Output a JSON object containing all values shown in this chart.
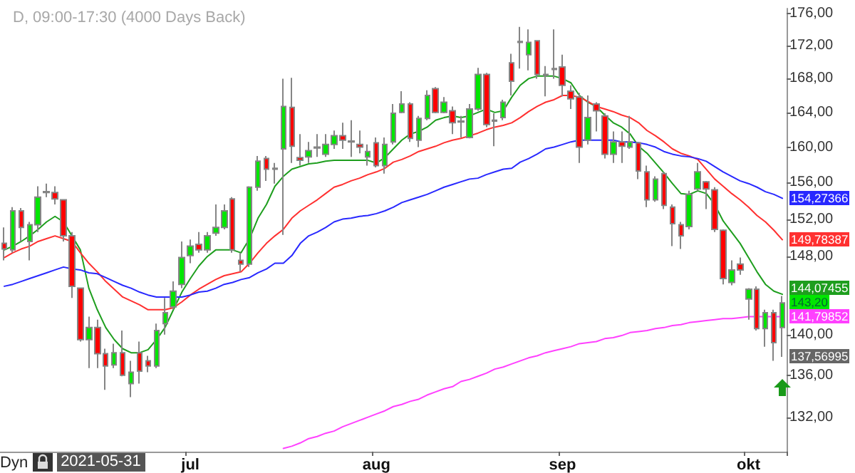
{
  "chart_data": {
    "type": "candlestick",
    "title": "D, 09:00-17:30 (4000 Days Back)",
    "categories": [
      null,
      null,
      null,
      null,
      null,
      null,
      null,
      null,
      null,
      null,
      null,
      null,
      null,
      null,
      null,
      null,
      null,
      null,
      null,
      null,
      null,
      null,
      "jul",
      null,
      null,
      null,
      null,
      null,
      null,
      null,
      null,
      null,
      null,
      null,
      null,
      null,
      null,
      null,
      null,
      null,
      null,
      null,
      null,
      null,
      "aug",
      null,
      null,
      null,
      null,
      null,
      null,
      null,
      null,
      null,
      null,
      null,
      null,
      null,
      null,
      null,
      null,
      null,
      null,
      null,
      null,
      null,
      "sep",
      null,
      null,
      null,
      null,
      null,
      null,
      null,
      null,
      null,
      null,
      null,
      null,
      null,
      null,
      null,
      null,
      null,
      null,
      null,
      null,
      null,
      "okt",
      null,
      null,
      null,
      null
    ],
    "ohlc": [
      [
        149.4,
        151.1,
        147.6,
        148.8
      ],
      [
        148.7,
        153.3,
        148.4,
        152.9
      ],
      [
        152.9,
        153.2,
        149.6,
        151.1
      ],
      [
        149.6,
        151.7,
        147.6,
        151.4
      ],
      [
        151.4,
        155.6,
        150.6,
        154.4
      ],
      [
        155.0,
        155.9,
        154.4,
        154.9
      ],
      [
        154.9,
        155.6,
        153.6,
        154.2
      ],
      [
        154.1,
        154.1,
        149.6,
        150.2
      ],
      [
        150.2,
        150.6,
        143.7,
        144.9
      ],
      [
        144.7,
        144.7,
        139.3,
        139.5
      ],
      [
        139.5,
        141.8,
        136.7,
        140.7
      ],
      [
        140.7,
        141.5,
        136.7,
        138.1
      ],
      [
        138.1,
        138.6,
        134.6,
        136.9
      ],
      [
        137.0,
        139.1,
        136.7,
        138.2
      ],
      [
        138.2,
        140.4,
        135.9,
        136.0
      ],
      [
        135.2,
        137.4,
        133.9,
        136.3
      ],
      [
        138.2,
        139.3,
        135.2,
        136.4
      ],
      [
        137.4,
        137.9,
        136.3,
        136.9
      ],
      [
        136.9,
        141.1,
        136.7,
        140.4
      ],
      [
        141.1,
        143.7,
        140.0,
        142.2
      ],
      [
        142.8,
        145.4,
        142.5,
        144.4
      ],
      [
        145.1,
        149.6,
        144.7,
        147.9
      ],
      [
        148.1,
        149.8,
        147.3,
        149.1
      ],
      [
        149.3,
        150.6,
        148.4,
        148.7
      ],
      [
        148.7,
        150.6,
        148.4,
        150.2
      ],
      [
        150.5,
        153.6,
        150.2,
        151.1
      ],
      [
        151.1,
        153.6,
        150.9,
        152.9
      ],
      [
        154.2,
        154.4,
        148.4,
        148.7
      ],
      [
        147.6,
        148.4,
        146.4,
        147.2
      ],
      [
        147.2,
        155.6,
        146.9,
        155.5
      ],
      [
        155.5,
        159.0,
        155.1,
        158.4
      ],
      [
        158.7,
        159.0,
        156.2,
        157.5
      ],
      [
        157.6,
        158.2,
        155.9,
        157.5
      ],
      [
        159.8,
        168.0,
        150.3,
        164.7
      ],
      [
        164.6,
        168.1,
        158.2,
        160.1
      ],
      [
        158.8,
        161.5,
        157.9,
        158.5
      ],
      [
        158.9,
        160.6,
        158.2,
        159.6
      ],
      [
        159.9,
        161.5,
        158.9,
        160.0
      ],
      [
        159.2,
        161.5,
        158.9,
        160.3
      ],
      [
        160.3,
        161.9,
        159.8,
        161.3
      ],
      [
        161.3,
        162.8,
        159.8,
        160.8
      ],
      [
        160.7,
        163.1,
        158.9,
        160.6
      ],
      [
        160.3,
        161.9,
        159.3,
        160.0
      ],
      [
        158.9,
        160.3,
        157.9,
        159.5
      ],
      [
        160.5,
        161.1,
        157.7,
        157.9
      ],
      [
        157.9,
        161.1,
        157.0,
        160.3
      ],
      [
        160.6,
        165.0,
        160.3,
        163.9
      ],
      [
        164.0,
        166.5,
        163.9,
        165.0
      ],
      [
        165.0,
        165.2,
        160.6,
        161.0
      ],
      [
        160.8,
        163.6,
        160.0,
        163.3
      ],
      [
        163.3,
        166.6,
        163.1,
        166.0
      ],
      [
        166.8,
        167.0,
        163.9,
        164.0
      ],
      [
        164.0,
        165.8,
        163.9,
        165.2
      ],
      [
        164.2,
        164.7,
        161.5,
        162.8
      ],
      [
        163.0,
        163.6,
        161.1,
        162.9
      ],
      [
        161.1,
        165.0,
        161.0,
        164.4
      ],
      [
        164.4,
        169.3,
        164.2,
        168.5
      ],
      [
        168.5,
        168.7,
        162.3,
        162.6
      ],
      [
        163.1,
        163.9,
        160.1,
        163.0
      ],
      [
        163.4,
        165.5,
        163.1,
        165.2
      ],
      [
        169.9,
        171.0,
        166.0,
        167.7
      ],
      [
        172.5,
        174.3,
        169.2,
        172.4
      ],
      [
        170.9,
        174.0,
        169.0,
        172.4
      ],
      [
        172.6,
        172.6,
        168.0,
        168.5
      ],
      [
        168.5,
        169.5,
        165.9,
        168.4
      ],
      [
        169.2,
        174.0,
        168.0,
        169.1
      ],
      [
        169.4,
        170.9,
        165.9,
        167.2
      ],
      [
        166.5,
        167.2,
        164.4,
        165.6
      ],
      [
        165.8,
        166.3,
        158.2,
        160.0
      ],
      [
        160.8,
        166.0,
        160.3,
        163.4
      ],
      [
        165.0,
        165.2,
        161.8,
        164.2
      ],
      [
        163.6,
        163.9,
        158.7,
        159.2
      ],
      [
        159.2,
        161.8,
        158.2,
        160.6
      ],
      [
        160.6,
        161.8,
        158.2,
        160.1
      ],
      [
        160.0,
        163.6,
        159.8,
        160.6
      ],
      [
        160.5,
        160.6,
        156.4,
        157.3
      ],
      [
        157.2,
        157.9,
        153.3,
        154.1
      ],
      [
        154.1,
        156.7,
        153.9,
        156.4
      ],
      [
        157.0,
        157.2,
        153.1,
        153.5
      ],
      [
        153.3,
        153.6,
        149.1,
        151.5
      ],
      [
        151.4,
        151.7,
        148.8,
        150.2
      ],
      [
        151.2,
        155.1,
        150.9,
        154.7
      ],
      [
        155.3,
        158.2,
        155.1,
        157.2
      ],
      [
        156.1,
        156.2,
        153.1,
        155.3
      ],
      [
        155.2,
        155.5,
        150.6,
        150.9
      ],
      [
        150.8,
        150.9,
        145.1,
        145.7
      ],
      [
        145.3,
        147.6,
        145.0,
        146.6
      ],
      [
        147.2,
        147.9,
        146.1,
        146.6
      ],
      [
        143.6,
        144.7,
        141.5,
        144.6
      ],
      [
        144.6,
        144.9,
        140.4,
        140.6
      ],
      [
        140.6,
        142.5,
        138.8,
        142.2
      ],
      [
        142.2,
        142.5,
        137.4,
        139.2
      ],
      [
        140.7,
        143.9,
        137.8,
        143.2
      ]
    ],
    "colors": [
      "#ff0000",
      "#00e600",
      "#ff0000",
      "#00e600",
      "#00e600",
      "#ff0000",
      "#ff0000",
      "#ff0000",
      "#ff0000",
      "#ff0000",
      "#00e600",
      "#ff0000",
      "#ff0000",
      "#00e600",
      "#ff0000",
      "#00e600",
      "#ff0000",
      "#ff0000",
      "#00e600",
      "#00e600",
      "#00e600",
      "#00e600",
      "#00e600",
      "#ff0000",
      "#00e600",
      "#00e600",
      "#00e600",
      "#ff0000",
      "#ff0000",
      "#00e600",
      "#00e600",
      "#ff0000",
      "#ff0000",
      "#00e600",
      "#ff0000",
      "#ff0000",
      "#00e600",
      "#00e600",
      "#00e600",
      "#00e600",
      "#ff0000",
      "#ff0000",
      "#ff0000",
      "#00e600",
      "#ff0000",
      "#00e600",
      "#00e600",
      "#00e600",
      "#ff0000",
      "#00e600",
      "#00e600",
      "#ff0000",
      "#00e600",
      "#ff0000",
      "#ff0000",
      "#00e600",
      "#00e600",
      "#ff0000",
      "#ff0000",
      "#00e600",
      "#ff0000",
      "#ff0000",
      "#00e600",
      "#ff0000",
      "#ff0000",
      "#ff0000",
      "#ff0000",
      "#ff0000",
      "#ff0000",
      "#00e600",
      "#ff0000",
      "#ff0000",
      "#00e600",
      "#ff0000",
      "#00e600",
      "#ff0000",
      "#ff0000",
      "#00e600",
      "#ff0000",
      "#ff0000",
      "#ff0000",
      "#00e600",
      "#00e600",
      "#ff0000",
      "#ff0000",
      "#ff0000",
      "#00e600",
      "#ff0000",
      "#00e600",
      "#ff0000",
      "#00e600",
      "#ff0000",
      "#00e600"
    ],
    "value_labels": [
      null,
      null,
      null,
      null,
      null,
      null,
      null,
      null,
      null,
      null,
      null,
      null,
      null,
      null,
      null,
      null,
      null,
      null,
      null,
      null,
      null,
      null,
      null,
      null,
      null,
      null,
      null,
      null,
      null,
      null,
      null,
      null,
      null,
      null,
      null,
      null,
      null,
      null,
      null,
      null,
      null,
      null,
      null,
      null,
      null,
      null,
      null,
      null,
      null,
      null,
      null,
      null,
      null,
      null,
      null,
      null,
      null,
      null,
      null,
      null,
      null,
      null,
      null,
      null,
      null,
      null,
      null,
      null,
      null,
      null,
      null,
      null,
      null,
      null,
      null,
      null,
      null,
      null,
      null,
      null,
      null,
      null,
      null,
      null,
      null,
      null,
      null,
      null,
      null,
      null,
      null,
      null,
      "143,20"
    ],
    "series": [
      {
        "type": "line",
        "color": "#1e9e1e",
        "values": [
          148.7,
          149.1,
          149.6,
          150.2,
          150.9,
          151.7,
          152.3,
          151.7,
          150.2,
          148.7,
          144.7,
          142.5,
          140.7,
          139.5,
          138.6,
          138.2,
          138.2,
          138.5,
          139.5,
          140.7,
          142.5,
          144.3,
          145.7,
          147.0,
          148.0,
          148.7,
          148.7,
          148.7,
          148.4,
          149.9,
          152.1,
          153.6,
          155.6,
          156.7,
          157.5,
          157.8,
          158.1,
          158.2,
          158.4,
          158.5,
          158.5,
          158.5,
          158.5,
          158.5,
          158.2,
          158.8,
          159.8,
          160.8,
          161.5,
          161.8,
          162.3,
          163.1,
          163.4,
          163.6,
          163.4,
          163.6,
          164.0,
          164.4,
          164.0,
          164.2,
          165.8,
          167.2,
          168.0,
          168.3,
          168.3,
          168.3,
          168.0,
          167.5,
          166.0,
          165.2,
          164.7,
          163.7,
          162.8,
          162.3,
          161.5,
          160.1,
          159.3,
          158.2,
          157.1,
          155.9,
          154.8,
          154.7,
          155.1,
          154.8,
          153.6,
          151.8,
          150.6,
          149.4,
          147.9,
          146.4,
          145.1,
          144.4,
          144.07455
        ],
        "value_labels": [
          null,
          null,
          null,
          null,
          null,
          null,
          null,
          null,
          null,
          null,
          null,
          null,
          null,
          null,
          null,
          null,
          null,
          null,
          null,
          null,
          null,
          null,
          null,
          null,
          null,
          null,
          null,
          null,
          null,
          null,
          null,
          null,
          null,
          null,
          null,
          null,
          null,
          null,
          null,
          null,
          null,
          null,
          null,
          null,
          null,
          null,
          null,
          null,
          null,
          null,
          null,
          null,
          null,
          null,
          null,
          null,
          null,
          null,
          null,
          null,
          null,
          null,
          null,
          null,
          null,
          null,
          null,
          null,
          null,
          null,
          null,
          null,
          null,
          null,
          null,
          null,
          null,
          null,
          null,
          null,
          null,
          null,
          null,
          null,
          null,
          null,
          null,
          null,
          null,
          null,
          null,
          null,
          "144,07455"
        ]
      },
      {
        "type": "line",
        "color": "#ff3030",
        "values": [
          147.9,
          148.4,
          148.8,
          149.1,
          149.6,
          149.9,
          150.2,
          149.9,
          149.6,
          148.4,
          147.3,
          146.4,
          145.4,
          144.6,
          143.8,
          143.4,
          143.0,
          142.5,
          142.5,
          142.5,
          142.7,
          143.3,
          144.0,
          144.6,
          145.1,
          145.6,
          146.0,
          146.2,
          146.4,
          147.3,
          148.4,
          149.4,
          150.2,
          150.9,
          152.1,
          152.9,
          153.5,
          154.1,
          154.8,
          155.5,
          155.8,
          156.2,
          156.5,
          156.9,
          157.2,
          157.6,
          158.3,
          158.6,
          159.0,
          159.5,
          159.8,
          160.1,
          160.5,
          160.8,
          161.0,
          161.3,
          161.6,
          162.0,
          162.3,
          162.5,
          162.8,
          163.4,
          164.1,
          164.7,
          165.2,
          165.5,
          166.0,
          166.0,
          165.8,
          165.3,
          164.7,
          164.4,
          164.1,
          163.7,
          163.4,
          162.8,
          161.9,
          161.3,
          160.6,
          159.8,
          159.3,
          159.0,
          158.6,
          157.5,
          156.4,
          155.6,
          154.8,
          154.1,
          153.3,
          152.4,
          151.7,
          150.8,
          149.78387
        ],
        "value_labels": [
          null,
          null,
          null,
          null,
          null,
          null,
          null,
          null,
          null,
          null,
          null,
          null,
          null,
          null,
          null,
          null,
          null,
          null,
          null,
          null,
          null,
          null,
          null,
          null,
          null,
          null,
          null,
          null,
          null,
          null,
          null,
          null,
          null,
          null,
          null,
          null,
          null,
          null,
          null,
          null,
          null,
          null,
          null,
          null,
          null,
          null,
          null,
          null,
          null,
          null,
          null,
          null,
          null,
          null,
          null,
          null,
          null,
          null,
          null,
          null,
          null,
          null,
          null,
          null,
          null,
          null,
          null,
          null,
          null,
          null,
          null,
          null,
          null,
          null,
          null,
          null,
          null,
          null,
          null,
          null,
          null,
          null,
          null,
          null,
          null,
          null,
          null,
          null,
          null,
          null,
          null,
          null,
          "149,78387"
        ]
      },
      {
        "type": "line",
        "color": "#2828ff",
        "values": [
          144.9,
          145.1,
          145.4,
          145.7,
          146.0,
          146.3,
          146.6,
          146.9,
          146.7,
          146.6,
          146.3,
          146.2,
          145.8,
          145.4,
          145.0,
          144.7,
          144.3,
          144.0,
          143.8,
          143.8,
          143.8,
          143.8,
          144.0,
          144.3,
          144.4,
          144.7,
          145.1,
          145.3,
          145.6,
          145.8,
          146.3,
          146.7,
          147.3,
          147.3,
          148.1,
          149.4,
          150.2,
          150.6,
          151.1,
          151.7,
          152.0,
          152.1,
          152.3,
          152.4,
          152.6,
          152.9,
          153.3,
          153.8,
          154.1,
          154.4,
          154.7,
          155.1,
          155.5,
          155.8,
          156.1,
          156.4,
          156.5,
          156.9,
          157.2,
          157.5,
          157.6,
          158.3,
          158.7,
          159.2,
          159.8,
          160.0,
          160.3,
          160.6,
          160.8,
          160.8,
          160.8,
          160.8,
          160.8,
          160.6,
          160.6,
          160.5,
          160.3,
          160.0,
          159.5,
          159.2,
          159.0,
          158.9,
          158.7,
          158.4,
          157.8,
          157.2,
          156.7,
          156.2,
          155.9,
          155.5,
          155.0,
          154.7,
          154.27366
        ],
        "value_labels": [
          null,
          null,
          null,
          null,
          null,
          null,
          null,
          null,
          null,
          null,
          null,
          null,
          null,
          null,
          null,
          null,
          null,
          null,
          null,
          null,
          null,
          null,
          null,
          null,
          null,
          null,
          null,
          null,
          null,
          null,
          null,
          null,
          null,
          null,
          null,
          null,
          null,
          null,
          null,
          null,
          null,
          null,
          null,
          null,
          null,
          null,
          null,
          null,
          null,
          null,
          null,
          null,
          null,
          null,
          null,
          null,
          null,
          null,
          null,
          null,
          null,
          null,
          null,
          null,
          null,
          null,
          null,
          null,
          null,
          null,
          null,
          null,
          null,
          null,
          null,
          null,
          null,
          null,
          null,
          null,
          null,
          null,
          null,
          null,
          null,
          null,
          null,
          null,
          null,
          null,
          null,
          null,
          "154,27366"
        ]
      },
      {
        "type": "line",
        "color": "#ff40ff",
        "values": [
          null,
          null,
          null,
          null,
          null,
          null,
          null,
          null,
          null,
          null,
          null,
          null,
          null,
          null,
          null,
          null,
          null,
          null,
          null,
          null,
          null,
          null,
          null,
          null,
          null,
          null,
          null,
          null,
          null,
          null,
          null,
          null,
          null,
          129.1,
          129.3,
          129.6,
          130.0,
          130.2,
          130.5,
          130.7,
          131.1,
          131.4,
          131.7,
          132.0,
          132.3,
          132.6,
          133.0,
          133.2,
          133.5,
          133.7,
          134.1,
          134.4,
          134.7,
          134.9,
          135.4,
          135.6,
          135.9,
          136.2,
          136.6,
          136.8,
          137.1,
          137.4,
          137.7,
          137.9,
          138.2,
          138.4,
          138.6,
          138.8,
          139.1,
          139.2,
          139.3,
          139.6,
          139.7,
          139.9,
          140.2,
          140.3,
          140.4,
          140.6,
          140.7,
          140.9,
          141.0,
          141.2,
          141.3,
          141.4,
          141.5,
          141.6,
          141.6,
          141.7,
          141.8,
          141.8,
          141.8,
          141.8,
          141.79852
        ],
        "value_labels": [
          null,
          null,
          null,
          null,
          null,
          null,
          null,
          null,
          null,
          null,
          null,
          null,
          null,
          null,
          null,
          null,
          null,
          null,
          null,
          null,
          null,
          null,
          null,
          null,
          null,
          null,
          null,
          null,
          null,
          null,
          null,
          null,
          null,
          null,
          null,
          null,
          null,
          null,
          null,
          null,
          null,
          null,
          null,
          null,
          null,
          null,
          null,
          null,
          null,
          null,
          null,
          null,
          null,
          null,
          null,
          null,
          null,
          null,
          null,
          null,
          null,
          null,
          null,
          null,
          null,
          null,
          null,
          null,
          null,
          null,
          null,
          null,
          null,
          null,
          null,
          null,
          null,
          null,
          null,
          null,
          null,
          null,
          null,
          null,
          null,
          null,
          null,
          null,
          null,
          null,
          null,
          null,
          "141,79852"
        ]
      }
    ],
    "ylim": [
      128.8,
      176.6
    ],
    "yticks": [
      {
        "value": 132,
        "label": "132,00"
      },
      {
        "value": 136,
        "label": "136,00"
      },
      {
        "value": 140,
        "label": "140,00"
      },
      {
        "value": 148,
        "label": "148,00"
      },
      {
        "value": 152,
        "label": "152,00"
      },
      {
        "value": 156,
        "label": "156,00"
      },
      {
        "value": 160,
        "label": "160,00"
      },
      {
        "value": 164,
        "label": "164,00"
      },
      {
        "value": 168,
        "label": "168,00"
      },
      {
        "value": 172,
        "label": "172,00"
      },
      {
        "value": 176,
        "label": "176,00"
      }
    ],
    "log": true,
    "grid": false,
    "marker": "none",
    "line_style": "solid",
    "annotations": [
      "Dyn",
      "2021-05-31",
      "137,56995"
    ]
  }
}
